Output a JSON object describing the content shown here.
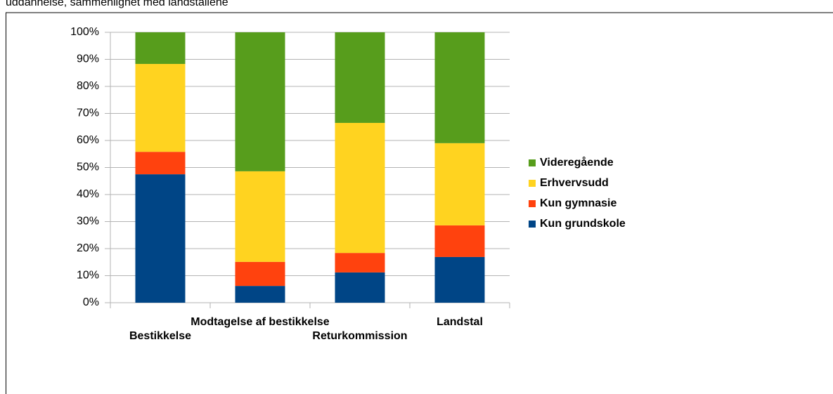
{
  "caption": "uddannelse, sammenlignet med landstallene",
  "chart_data": {
    "type": "stacked_bar_percent",
    "categories": [
      "Bestikkelse",
      "Modtagelse af bestikkelse",
      "Returkommission",
      "Landstal"
    ],
    "series": [
      {
        "name": "Kun grundskole",
        "color": "#004586",
        "values": [
          47.5,
          6.2,
          11.2,
          16.9
        ]
      },
      {
        "name": "Kun gymnasie",
        "color": "#ff420e",
        "values": [
          8.3,
          8.9,
          7.2,
          11.7
        ]
      },
      {
        "name": "Erhvervsudd",
        "color": "#ffd320",
        "values": [
          32.5,
          33.5,
          48.1,
          30.4
        ]
      },
      {
        "name": "Videregående",
        "color": "#579d1c",
        "values": [
          11.7,
          51.4,
          33.5,
          41.0
        ]
      }
    ],
    "ylim": [
      0,
      100
    ],
    "yticks": [
      {
        "value": 0,
        "label": "0%"
      },
      {
        "value": 10,
        "label": "10%"
      },
      {
        "value": 20,
        "label": "20%"
      },
      {
        "value": 30,
        "label": "30%"
      },
      {
        "value": 40,
        "label": "40%"
      },
      {
        "value": 50,
        "label": "50%"
      },
      {
        "value": 60,
        "label": "60%"
      },
      {
        "value": 70,
        "label": "70%"
      },
      {
        "value": 80,
        "label": "80%"
      },
      {
        "value": 90,
        "label": "90%"
      },
      {
        "value": 100,
        "label": "100%"
      }
    ],
    "grid": true,
    "legend": "right"
  }
}
